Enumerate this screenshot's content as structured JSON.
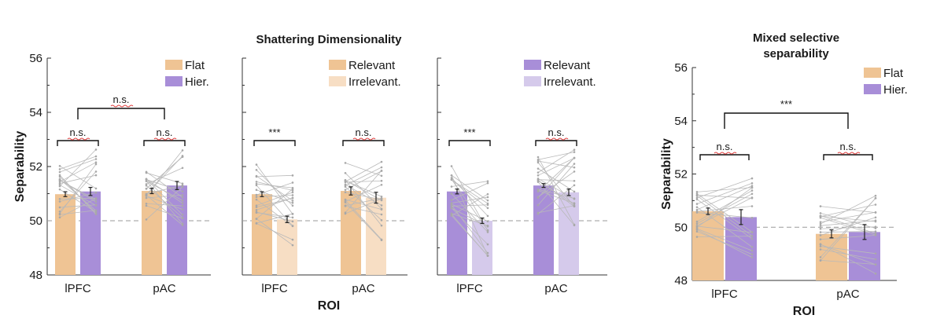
{
  "chart_data": [
    {
      "type": "bar",
      "panel": "flat-vs-hier",
      "title": "Shattering Dimensionality",
      "ylabel": "Separability",
      "xlabel": "",
      "ylim": [
        48,
        56
      ],
      "yticks": [
        48,
        50,
        52,
        54,
        56
      ],
      "chance": 50,
      "categories": [
        "lPFC",
        "pAC"
      ],
      "series": [
        {
          "name": "Flat",
          "values": [
            50.98,
            51.1
          ],
          "errors": [
            0.09,
            0.1
          ],
          "color": "#EFC494"
        },
        {
          "name": "Hier.",
          "values": [
            51.08,
            51.3
          ],
          "errors": [
            0.15,
            0.15
          ],
          "color": "#A88ED8"
        }
      ],
      "within_labels": [
        "n.s.",
        "n.s."
      ],
      "between_label": "n.s.",
      "legend": "top-right"
    },
    {
      "type": "bar",
      "panel": "flat-relevant-irrelevant",
      "title": "",
      "ylabel": "",
      "xlabel": "ROI",
      "ylim": [
        48,
        56
      ],
      "chance": 50,
      "categories": [
        "lPFC",
        "pAC"
      ],
      "series": [
        {
          "name": "Relevant",
          "values": [
            50.98,
            51.1
          ],
          "errors": [
            0.09,
            0.15
          ],
          "color": "#EFC494"
        },
        {
          "name": "Irrelevant.",
          "values": [
            50.05,
            50.85
          ],
          "errors": [
            0.12,
            0.2
          ],
          "color": "#F7DEC4"
        }
      ],
      "within_labels": [
        "***",
        "n.s."
      ],
      "legend": "top-right"
    },
    {
      "type": "bar",
      "panel": "hier-relevant-irrelevant",
      "title": "",
      "ylabel": "",
      "xlabel": "",
      "ylim": [
        48,
        56
      ],
      "chance": 50,
      "categories": [
        "lPFC",
        "pAC"
      ],
      "series": [
        {
          "name": "Relevant",
          "values": [
            51.08,
            51.3
          ],
          "errors": [
            0.09,
            0.07
          ],
          "color": "#A88ED8"
        },
        {
          "name": "Irrelevant.",
          "values": [
            50.0,
            51.05
          ],
          "errors": [
            0.1,
            0.12
          ],
          "color": "#D5CAEB"
        }
      ],
      "within_labels": [
        "***",
        "n.s."
      ],
      "legend": "top-right"
    },
    {
      "type": "bar",
      "panel": "mixed-selective",
      "title": "Mixed selective separability",
      "title_lines": [
        "Mixed selective",
        "separability"
      ],
      "ylabel": "Separability",
      "xlabel": "ROI",
      "ylim": [
        48,
        56
      ],
      "yticks": [
        48,
        50,
        52,
        54,
        56
      ],
      "chance": 50,
      "categories": [
        "lPFC",
        "pAC"
      ],
      "series": [
        {
          "name": "Flat",
          "values": [
            50.6,
            49.75
          ],
          "errors": [
            0.12,
            0.15
          ],
          "color": "#EFC494"
        },
        {
          "name": "Hier.",
          "values": [
            50.38,
            49.82
          ],
          "errors": [
            0.28,
            0.28
          ],
          "color": "#A88ED8"
        }
      ],
      "within_labels": [
        "n.s.",
        "n.s."
      ],
      "between_label": "***",
      "legend": "top-right"
    }
  ]
}
